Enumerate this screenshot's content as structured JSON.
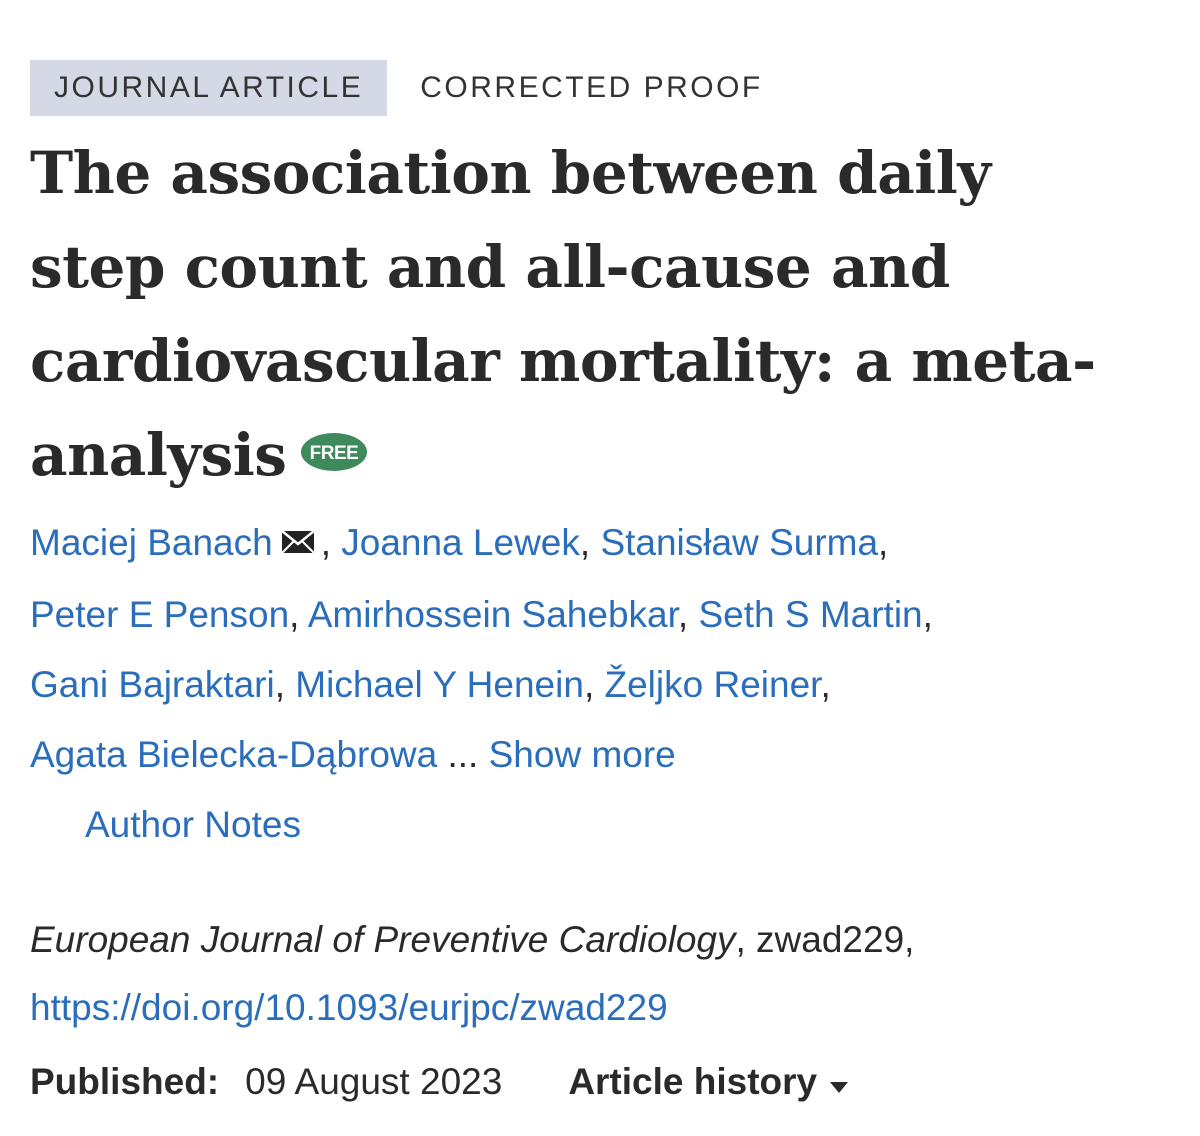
{
  "tags": {
    "article_type": "JOURNAL ARTICLE",
    "status": "CORRECTED PROOF"
  },
  "title": {
    "line1": "The association between daily",
    "line2": "step count and all-cause and",
    "line3": "cardiovascular mortality: a meta-",
    "line4": "analysis",
    "badge": "FREE"
  },
  "authors": {
    "names": [
      "Maciej Banach",
      "Joanna Lewek",
      "Stanisław Surma",
      "Peter E Penson",
      "Amirhossein Sahebkar",
      "Seth S Martin",
      "Gani Bajraktari",
      "Michael Y Henein",
      "Željko Reiner",
      "Agata Bielecka-Dąbrowa"
    ],
    "ellipsis": "...",
    "show_more": "Show more",
    "author_notes": "Author Notes"
  },
  "citation": {
    "journal": "European Journal of Preventive Cardiology",
    "article_id": ", zwad229,",
    "doi": "https://doi.org/10.1093/eurjpc/zwad229"
  },
  "published": {
    "label": "Published:",
    "date": "09 August 2023",
    "history_label": "Article history"
  },
  "colors": {
    "link": "#2a6ebb",
    "badge": "#3f8a5c",
    "tag_bg": "#d5d9e5"
  },
  "icons": {
    "mail": "mail-icon",
    "caret": "caret-down-icon"
  }
}
